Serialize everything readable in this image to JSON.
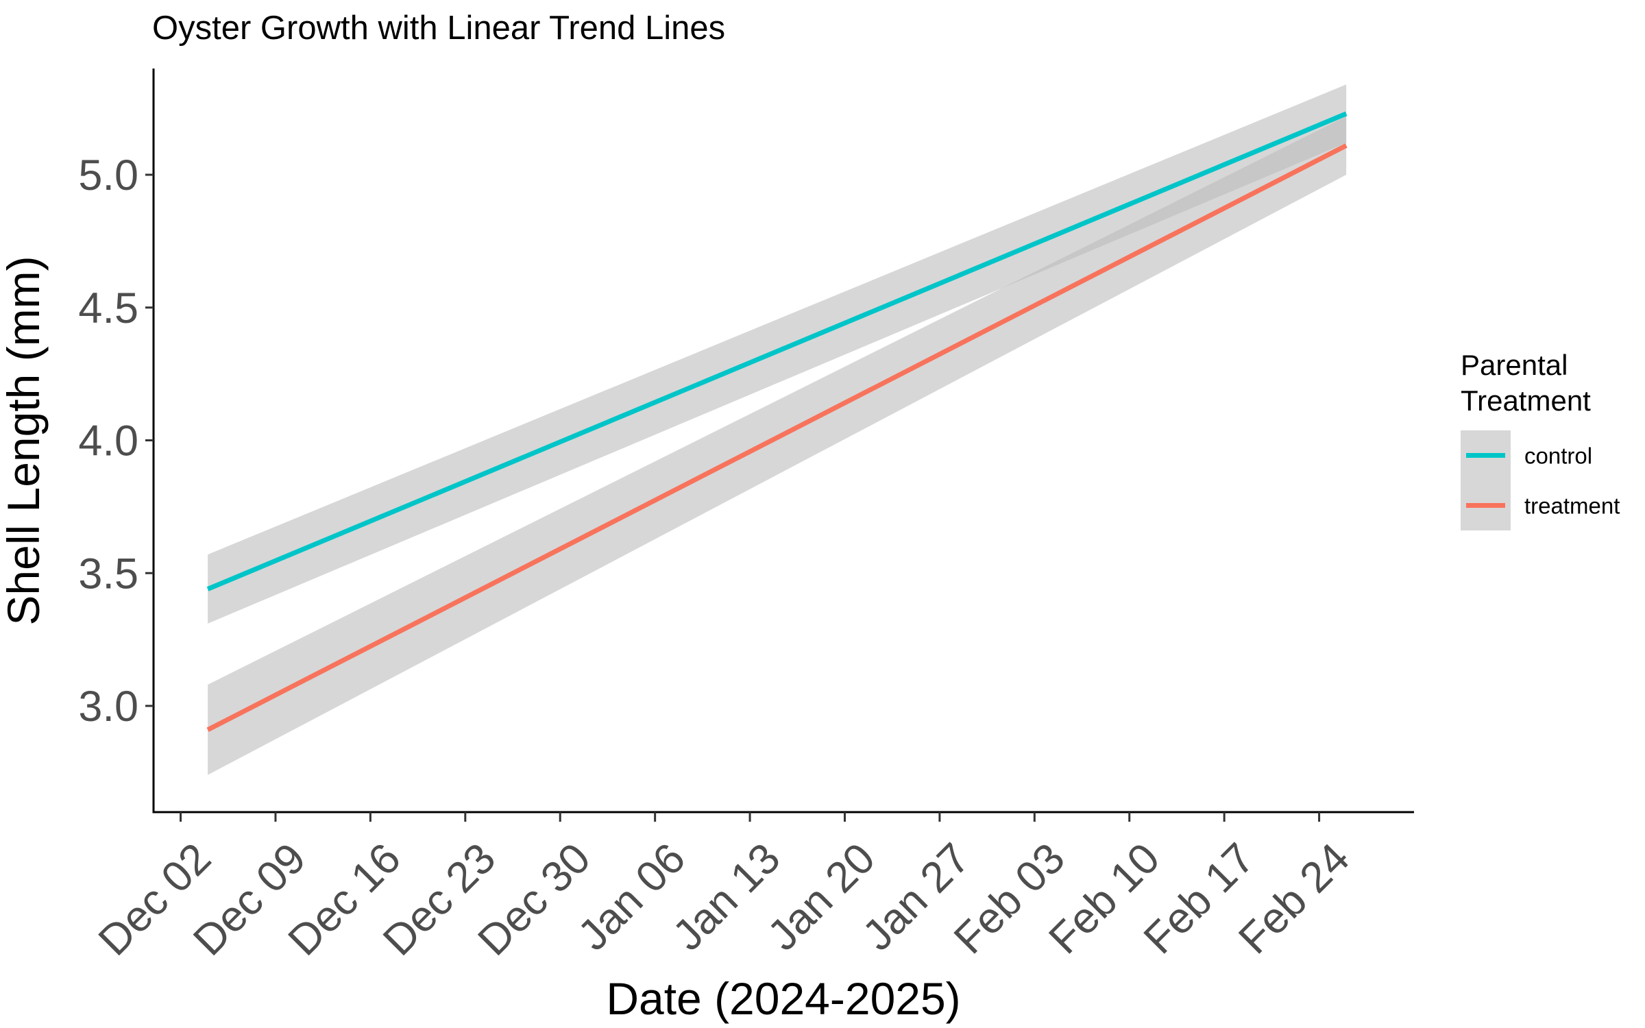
{
  "chart_data": {
    "type": "line",
    "title": "Oyster Growth with Linear Trend Lines",
    "xlabel": "Date (2024-2025)",
    "ylabel": "Shell Length (mm)",
    "x_type": "date",
    "xlim": [
      "2024-11-30",
      "2025-03-03"
    ],
    "ylim": [
      2.6,
      5.4
    ],
    "x_ticks": [
      "2024-12-02",
      "2024-12-09",
      "2024-12-16",
      "2024-12-23",
      "2024-12-30",
      "2025-01-06",
      "2025-01-13",
      "2025-01-20",
      "2025-01-27",
      "2025-02-03",
      "2025-02-10",
      "2025-02-17",
      "2025-02-24"
    ],
    "x_tick_labels": [
      "Dec 02",
      "Dec 09",
      "Dec 16",
      "Dec 23",
      "Dec 30",
      "Jan 06",
      "Jan 13",
      "Jan 20",
      "Jan 27",
      "Feb 03",
      "Feb 10",
      "Feb 17",
      "Feb 24"
    ],
    "y_ticks": [
      3.0,
      3.5,
      4.0,
      4.5,
      5.0
    ],
    "y_tick_labels": [
      "3.0",
      "3.5",
      "4.0",
      "4.5",
      "5.0"
    ],
    "grid": false,
    "legend": {
      "title_lines": [
        "Parental",
        "Treatment"
      ],
      "position": "right"
    },
    "series": [
      {
        "name": "control",
        "color": "#00C5C8",
        "x": [
          "2024-12-04",
          "2025-02-26"
        ],
        "y": [
          3.44,
          5.23
        ],
        "ci_lower": [
          3.31,
          5.12
        ],
        "ci_upper": [
          3.57,
          5.34
        ]
      },
      {
        "name": "treatment",
        "color": "#F8735C",
        "x": [
          "2024-12-04",
          "2025-02-26"
        ],
        "y": [
          2.91,
          5.11
        ],
        "ci_lower": [
          2.74,
          5.0
        ],
        "ci_upper": [
          3.08,
          5.22
        ]
      }
    ],
    "band_color": "#bdbdbd"
  }
}
